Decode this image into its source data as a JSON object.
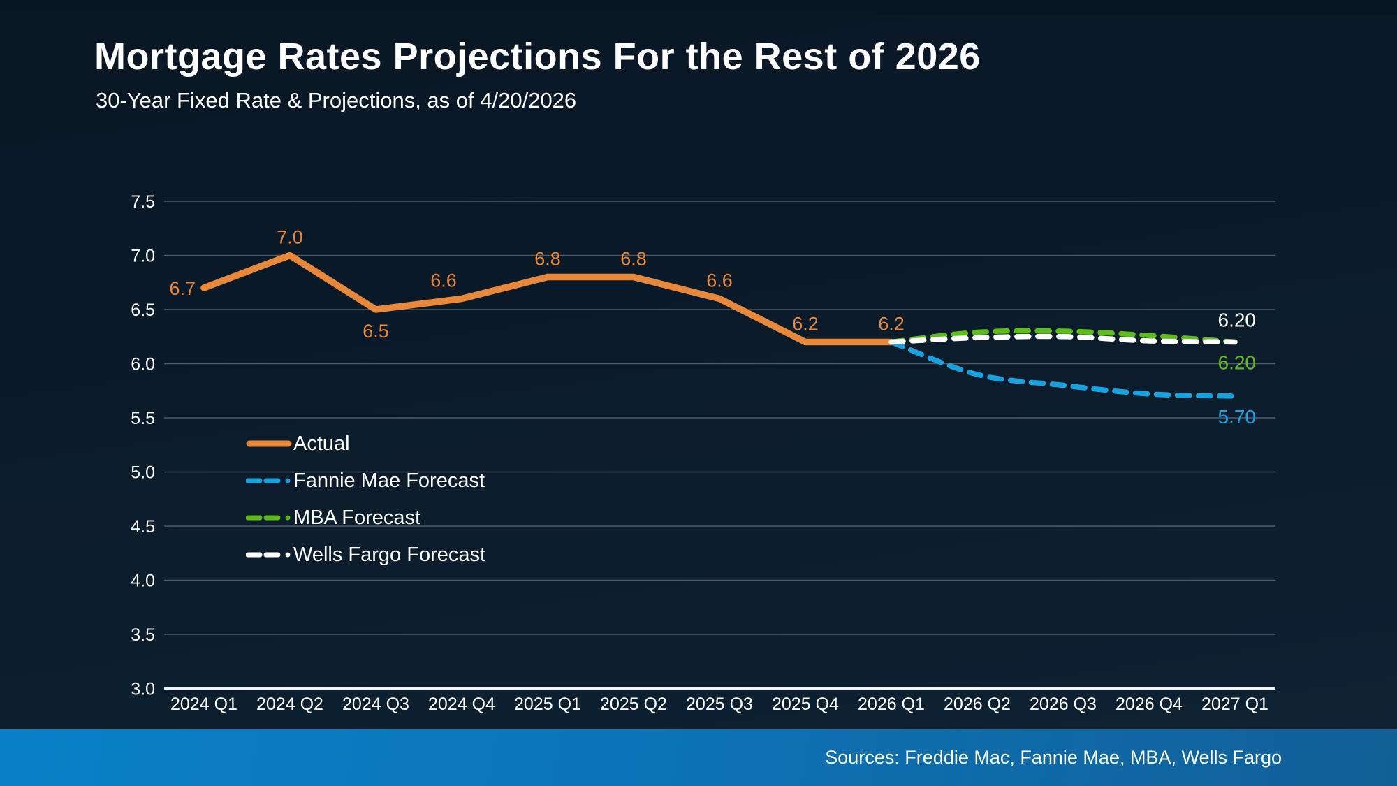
{
  "header": {
    "title": "Mortgage Rates Projections For the Rest of 2026",
    "subtitle": "30-Year Fixed Rate & Projections, as of 4/20/2026"
  },
  "footer": {
    "sources": "Sources: Freddie Mac, Fannie Mae, MBA, Wells Fargo"
  },
  "colors": {
    "background": "#0b1b2a",
    "footer_blue": "#0a80c8",
    "gridline": "#4e5a66",
    "axis_line": "#f0f2f4",
    "actual_orange": "#e8883b",
    "fannie_blue": "#18a3e0",
    "mba_green": "#5fbc1e",
    "wells_white": "#ffffff"
  },
  "chart_data": {
    "type": "line",
    "title": "Mortgage Rates Projections For the Rest of 2026",
    "xlabel": "",
    "ylabel": "",
    "ylim": [
      3.0,
      7.5
    ],
    "grid": true,
    "legend_position": "inside-left",
    "categories": [
      "2024 Q1",
      "2024 Q2",
      "2024 Q3",
      "2024 Q4",
      "2025 Q1",
      "2025 Q2",
      "2025 Q3",
      "2025 Q4",
      "2026 Q1",
      "2026 Q2",
      "2026 Q3",
      "2026 Q4",
      "2027 Q1"
    ],
    "yticks": [
      "7.5",
      "7.0",
      "6.5",
      "6.0",
      "5.5",
      "5.0",
      "4.5",
      "4.0",
      "3.5",
      "3.0"
    ],
    "series": [
      {
        "name": "Actual",
        "color": "#e8883b",
        "style": "solid",
        "start_index": 0,
        "values": [
          6.7,
          7.0,
          6.5,
          6.6,
          6.8,
          6.8,
          6.6,
          6.2,
          6.2
        ],
        "labels": [
          "6.7",
          "7.0",
          "6.5",
          "6.6",
          "6.8",
          "6.8",
          "6.6",
          "6.2",
          "6.2"
        ],
        "label_pos": [
          "left",
          "above",
          "below",
          "above",
          "above",
          "above",
          "above",
          "above",
          "above"
        ],
        "label_dx": [
          0,
          0,
          0,
          -26,
          0,
          0,
          0,
          0,
          0
        ]
      },
      {
        "name": "Fannie Mae Forecast",
        "color": "#18a3e0",
        "style": "dashed",
        "start_index": 8,
        "values": [
          6.2,
          5.9,
          5.8,
          5.72,
          5.7
        ],
        "end_label": "5.70",
        "end_label_pos": "below"
      },
      {
        "name": "MBA Forecast",
        "color": "#5fbc1e",
        "style": "dashed",
        "start_index": 8,
        "values": [
          6.2,
          6.29,
          6.3,
          6.26,
          6.2
        ],
        "end_label": "6.20",
        "end_label_pos": "below"
      },
      {
        "name": "Wells Fargo Forecast",
        "color": "#ffffff",
        "style": "dashed",
        "start_index": 8,
        "values": [
          6.2,
          6.24,
          6.25,
          6.21,
          6.2
        ],
        "end_label": "6.20",
        "end_label_pos": "above"
      }
    ]
  }
}
